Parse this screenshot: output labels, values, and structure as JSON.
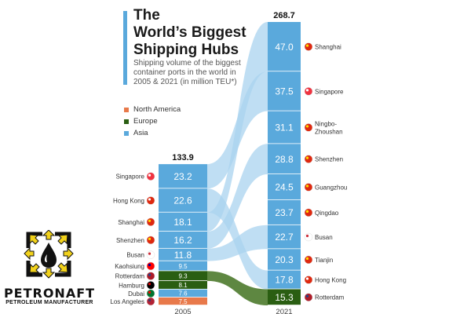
{
  "page": {
    "title_lines": [
      "The",
      "World’s Biggest",
      "Shipping Hubs"
    ],
    "subtitle_lines": [
      "Shipping volume of the biggest",
      "container ports in the world in",
      "2005 & 2021 (in million TEU*)"
    ],
    "accent_color": "#5aa9dc"
  },
  "legend": [
    {
      "label": "North America",
      "color": "#e8794a"
    },
    {
      "label": "Europe",
      "color": "#2a5e12"
    },
    {
      "label": "Asia",
      "color": "#5aa9dc"
    }
  ],
  "branding": {
    "name": "PETRONAFT",
    "tagline": "PETROLEUM MANUFACTURER",
    "logo_icon": "oil-drop-icon"
  },
  "chart_data": {
    "type": "bar",
    "title": "The World’s Biggest Shipping Hubs",
    "unit": "million TEU*",
    "categories": [
      "2005",
      "2021"
    ],
    "totals": {
      "2005": "133.9",
      "2021": "268.7"
    },
    "series": [
      {
        "year": "2005",
        "ports": [
          {
            "name": "Singapore",
            "value": 23.2,
            "label": "23.2",
            "region": "Asia",
            "flag": "singapore-flag"
          },
          {
            "name": "Hong Kong",
            "value": 22.6,
            "label": "22.6",
            "region": "Asia",
            "flag": "hong-kong-flag"
          },
          {
            "name": "Shanghai",
            "value": 18.1,
            "label": "18.1",
            "region": "Asia",
            "flag": "china-flag"
          },
          {
            "name": "Shenzhen",
            "value": 16.2,
            "label": "16.2",
            "region": "Asia",
            "flag": "china-flag"
          },
          {
            "name": "Busan",
            "value": 11.8,
            "label": "11.8",
            "region": "Asia",
            "flag": "south-korea-flag"
          },
          {
            "name": "Kaohsiung",
            "value": 9.5,
            "label": "9.5",
            "region": "Asia",
            "flag": "taiwan-flag"
          },
          {
            "name": "Rotterdam",
            "value": 9.3,
            "label": "9.3",
            "region": "Europe",
            "flag": "netherlands-flag"
          },
          {
            "name": "Hamburg",
            "value": 8.1,
            "label": "8.1",
            "region": "Europe",
            "flag": "germany-flag"
          },
          {
            "name": "Dubai",
            "value": 7.6,
            "label": "7.6",
            "region": "Asia",
            "flag": "uae-flag"
          },
          {
            "name": "Los Angeles",
            "value": 7.5,
            "label": "7.5",
            "region": "North America",
            "flag": "usa-flag"
          }
        ]
      },
      {
        "year": "2021",
        "ports": [
          {
            "name": "Shanghai",
            "value": 47.0,
            "label": "47.0",
            "region": "Asia",
            "flag": "china-flag"
          },
          {
            "name": "Singapore",
            "value": 37.5,
            "label": "37.5",
            "region": "Asia",
            "flag": "singapore-flag"
          },
          {
            "name": "Ningbo-\nZhoushan",
            "value": 31.1,
            "label": "31.1",
            "region": "Asia",
            "flag": "china-flag"
          },
          {
            "name": "Shenzhen",
            "value": 28.8,
            "label": "28.8",
            "region": "Asia",
            "flag": "china-flag"
          },
          {
            "name": "Guangzhou",
            "value": 24.5,
            "label": "24.5",
            "region": "Asia",
            "flag": "china-flag"
          },
          {
            "name": "Qingdao",
            "value": 23.7,
            "label": "23.7",
            "region": "Asia",
            "flag": "china-flag"
          },
          {
            "name": "Busan",
            "value": 22.7,
            "label": "22.7",
            "region": "Asia",
            "flag": "south-korea-flag"
          },
          {
            "name": "Tianjin",
            "value": 20.3,
            "label": "20.3",
            "region": "Asia",
            "flag": "china-flag"
          },
          {
            "name": "Hong Kong",
            "value": 17.8,
            "label": "17.8",
            "region": "Asia",
            "flag": "hong-kong-flag"
          },
          {
            "name": "Rotterdam",
            "value": 15.3,
            "label": "15.3",
            "region": "Europe",
            "flag": "netherlands-flag"
          }
        ]
      }
    ],
    "region_colors": {
      "Asia": "#5aa9dc",
      "Europe": "#2a5e12",
      "North America": "#e8794a"
    },
    "flow_colors": {
      "Asia": "#a9d3ef",
      "Europe": "#4d7a2c"
    }
  }
}
